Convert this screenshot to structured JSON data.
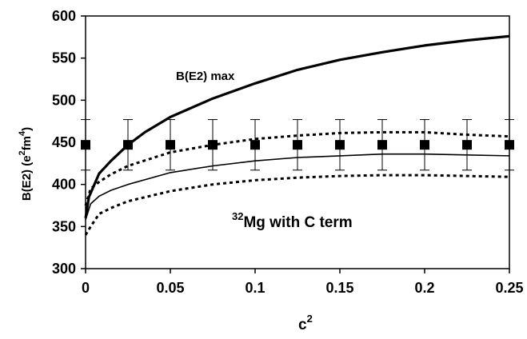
{
  "chart_data": {
    "type": "line",
    "xlabel": "c",
    "xlabel_sup": "2",
    "ylabel_parts": [
      "B(E2) (e",
      "2",
      "fm",
      "4",
      ")"
    ],
    "xlim": [
      0,
      0.25
    ],
    "ylim": [
      300,
      600
    ],
    "xticks": [
      0,
      0.05,
      0.1,
      0.15,
      0.2,
      0.25
    ],
    "xtick_labels": [
      "0",
      "0.05",
      "0.1",
      "0.15",
      "0.2",
      "0.25"
    ],
    "yticks": [
      300,
      350,
      400,
      450,
      500,
      550,
      600
    ],
    "ytick_labels": [
      "300",
      "350",
      "400",
      "450",
      "500",
      "550",
      "600"
    ],
    "grid": false,
    "annotations": {
      "bmax_label": "B(E2) max",
      "mg_sup": "32",
      "mg_text": "Mg with C term"
    },
    "series": [
      {
        "style": "thick-solid",
        "x": [
          0,
          0.002,
          0.008,
          0.015,
          0.025,
          0.035,
          0.05,
          0.075,
          0.1,
          0.125,
          0.15,
          0.175,
          0.2,
          0.225,
          0.25
        ],
        "y": [
          360,
          385,
          413,
          428,
          447,
          462,
          480,
          502,
          520,
          536,
          548,
          557,
          565,
          571,
          576
        ]
      },
      {
        "style": "dotted-upper",
        "x": [
          0,
          0.003,
          0.008,
          0.015,
          0.025,
          0.05,
          0.075,
          0.1,
          0.125,
          0.15,
          0.175,
          0.2,
          0.225,
          0.25
        ],
        "y": [
          375,
          395,
          403,
          412,
          422,
          438,
          447,
          454,
          458,
          461,
          462,
          462,
          459,
          457
        ]
      },
      {
        "style": "thin-solid",
        "x": [
          0,
          0.003,
          0.008,
          0.015,
          0.025,
          0.05,
          0.075,
          0.1,
          0.125,
          0.15,
          0.175,
          0.2,
          0.225,
          0.25
        ],
        "y": [
          358,
          377,
          386,
          393,
          400,
          414,
          422,
          428,
          432,
          434,
          436,
          436,
          435,
          434
        ]
      },
      {
        "style": "dotted-lower",
        "x": [
          0,
          0.003,
          0.008,
          0.015,
          0.025,
          0.05,
          0.075,
          0.1,
          0.125,
          0.15,
          0.175,
          0.2,
          0.225,
          0.25
        ],
        "y": [
          340,
          350,
          365,
          372,
          380,
          392,
          400,
          405,
          408,
          410,
          411,
          411,
          410,
          409
        ]
      }
    ],
    "experiment": {
      "x": [
        0,
        0.025,
        0.05,
        0.075,
        0.1,
        0.125,
        0.15,
        0.175,
        0.2,
        0.225,
        0.25
      ],
      "y": 447,
      "err": 30
    }
  }
}
